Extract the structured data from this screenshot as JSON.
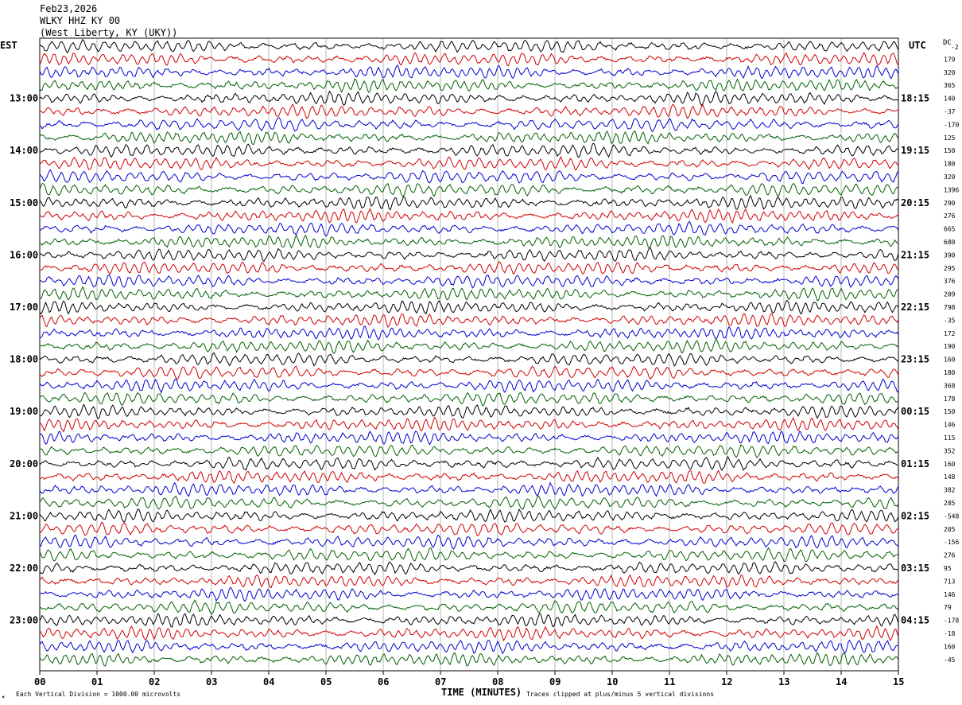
{
  "header": {
    "date": "Feb23,2026",
    "station": "WLKY HHZ KY 00",
    "location": "(West Liberty, KY (UKY))"
  },
  "labels": {
    "left_zone": "EST",
    "right_zone": "UTC",
    "dc_header": "DC",
    "dc_sub": "-2",
    "x_axis_title": "TIME (MINUTES)",
    "scale_note": "Each Vertical Division = 1000.00 microvolts",
    "clip_note": "Traces clipped at plus/minus 5 vertical divisions",
    "corner_mark": "✶"
  },
  "chart_data": {
    "type": "line",
    "title": "",
    "xlabel": "TIME (MINUTES)",
    "xlim": [
      0,
      15
    ],
    "x_ticks": [
      "00",
      "01",
      "02",
      "03",
      "04",
      "05",
      "06",
      "07",
      "08",
      "09",
      "10",
      "11",
      "12",
      "13",
      "14",
      "15"
    ],
    "trace_count": 48,
    "trace_colors": [
      "#000000",
      "#d00000",
      "#0000d0",
      "#006000"
    ],
    "left_hour_labels": [
      "13:00",
      "14:00",
      "15:00",
      "16:00",
      "17:00",
      "18:00",
      "19:00",
      "20:00",
      "21:00",
      "22:00",
      "23:00"
    ],
    "right_hour_labels": [
      "18:15",
      "19:15",
      "20:15",
      "21:15",
      "22:15",
      "23:15",
      "00:15",
      "01:15",
      "02:15",
      "03:15",
      "04:15"
    ],
    "dc_offsets": [
      "179",
      "320",
      "365",
      "140",
      "-37",
      "-170",
      "125",
      "150",
      "180",
      "320",
      "1396",
      "290",
      "276",
      "665",
      "680",
      "390",
      "295",
      "376",
      "209",
      "798",
      "-35",
      "172",
      "190",
      "160",
      "180",
      "368",
      "178",
      "150",
      "146",
      "115",
      "352",
      "160",
      "148",
      "382",
      "285",
      "-548",
      "205",
      "-156",
      "276",
      "95",
      "713",
      "146",
      "79",
      "-178",
      "-18",
      "160",
      "-45"
    ],
    "units": "Each Vertical Division = 1000.00 microvolts"
  }
}
